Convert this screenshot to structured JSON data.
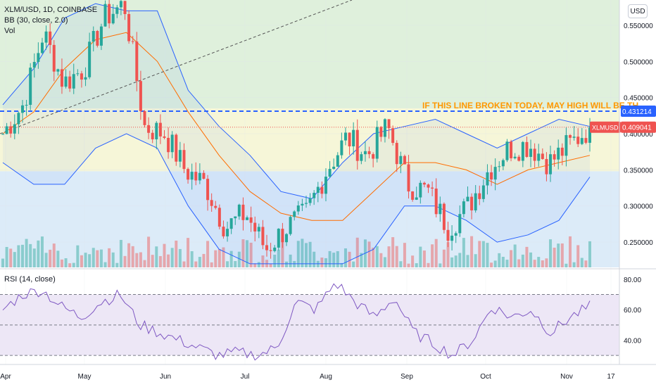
{
  "header": {
    "symbol": "XLM/USD, 1D, COINBASE",
    "indicator": "BB (30, close, 2.0)",
    "volume": "Vol",
    "currency_button": "USD"
  },
  "rsi_panel": {
    "title": "RSI (14, close)"
  },
  "annotation": {
    "text": "IF THIS LINE BROKEN TODAY, MAY HIGH WILL BE TH"
  },
  "price_labels": {
    "line_level": "0.431214",
    "current_tag": "XLMUSD",
    "current_value": "0.409041"
  },
  "colors": {
    "up": "#26a69a",
    "down": "#ef5350",
    "bb_band": "#2962ff",
    "bb_basis": "#ff6d00",
    "green_zone": "#dff0dc",
    "yellow_zone": "#f6f6d8",
    "blue_zone": "#dcebf8",
    "rsi_fill": "#ede7f6",
    "rsi_line": "#7e57c2",
    "annotation": "#ff9800",
    "level_line": "#2962ff"
  },
  "chart_data": [
    {
      "type": "candlestick",
      "title": "XLM/USD, 1D, COINBASE",
      "x_ticks": [
        "Apr",
        "May",
        "Jun",
        "Jul",
        "Aug",
        "Sep",
        "Oct",
        "Nov",
        "17"
      ],
      "y_ticks": [
        "0.250000",
        "0.300000",
        "0.350000",
        "0.400000",
        "0.450000",
        "0.500000",
        "0.550000"
      ],
      "ylim": [
        0.215,
        0.585
      ],
      "zones": [
        {
          "name": "green",
          "from": 0.435,
          "to": 0.585
        },
        {
          "name": "yellow",
          "from": 0.348,
          "to": 0.435
        },
        {
          "name": "blue",
          "from": 0.215,
          "to": 0.348
        }
      ],
      "horizontal_line": 0.431214,
      "current_price": 0.409041,
      "anchors": [
        {
          "month": "Apr",
          "price": 0.4
        },
        {
          "month": "Apr",
          "price": 0.44
        },
        {
          "month": "Apr",
          "price": 0.54
        },
        {
          "month": "Apr",
          "price": 0.47
        },
        {
          "month": "May",
          "price": 0.49
        },
        {
          "month": "May",
          "price": 0.56
        },
        {
          "month": "May",
          "price": 0.58
        },
        {
          "month": "May",
          "price": 0.41
        },
        {
          "month": "Jun",
          "price": 0.4
        },
        {
          "month": "Jun",
          "price": 0.35
        },
        {
          "month": "Jun",
          "price": 0.33
        },
        {
          "month": "Jul",
          "price": 0.27
        },
        {
          "month": "Jul",
          "price": 0.29
        },
        {
          "month": "Jul",
          "price": 0.24
        },
        {
          "month": "Aug",
          "price": 0.27
        },
        {
          "month": "Aug",
          "price": 0.29
        },
        {
          "month": "Aug",
          "price": 0.35
        },
        {
          "month": "Aug",
          "price": 0.395
        },
        {
          "month": "Aug",
          "price": 0.37
        },
        {
          "month": "Sep",
          "price": 0.41
        },
        {
          "month": "Sep",
          "price": 0.33
        },
        {
          "month": "Sep",
          "price": 0.32
        },
        {
          "month": "Oct",
          "price": 0.27
        },
        {
          "month": "Oct",
          "price": 0.3
        },
        {
          "month": "Oct",
          "price": 0.35
        },
        {
          "month": "Oct",
          "price": 0.38
        },
        {
          "month": "Oct",
          "price": 0.385
        },
        {
          "month": "Nov",
          "price": 0.36
        },
        {
          "month": "Nov",
          "price": 0.385
        },
        {
          "month": "Nov",
          "price": 0.409
        }
      ],
      "bollinger": {
        "upper": [
          0.44,
          0.49,
          0.56,
          0.58,
          0.57,
          0.57,
          0.46,
          0.41,
          0.37,
          0.32,
          0.31,
          0.36,
          0.4,
          0.41,
          0.42,
          0.4,
          0.38,
          0.4,
          0.42,
          0.41
        ],
        "basis": [
          0.4,
          0.43,
          0.49,
          0.53,
          0.54,
          0.5,
          0.43,
          0.37,
          0.32,
          0.29,
          0.28,
          0.28,
          0.32,
          0.36,
          0.36,
          0.35,
          0.33,
          0.35,
          0.36,
          0.37
        ],
        "lower": [
          0.36,
          0.33,
          0.33,
          0.38,
          0.4,
          0.38,
          0.3,
          0.24,
          0.22,
          0.22,
          0.22,
          0.22,
          0.24,
          0.3,
          0.3,
          0.28,
          0.25,
          0.26,
          0.28,
          0.34
        ]
      }
    },
    {
      "type": "line",
      "title": "RSI (14, close)",
      "y_ticks": [
        "40.00",
        "60.00",
        "80.00"
      ],
      "ylim": [
        25,
        85
      ],
      "bands": [
        30,
        50,
        70
      ],
      "values": [
        60,
        70,
        73,
        62,
        55,
        65,
        70,
        50,
        45,
        40,
        35,
        30,
        32,
        30,
        35,
        65,
        60,
        78,
        65,
        55,
        68,
        45,
        38,
        30,
        40,
        62,
        55,
        60,
        45,
        55,
        62
      ]
    }
  ]
}
